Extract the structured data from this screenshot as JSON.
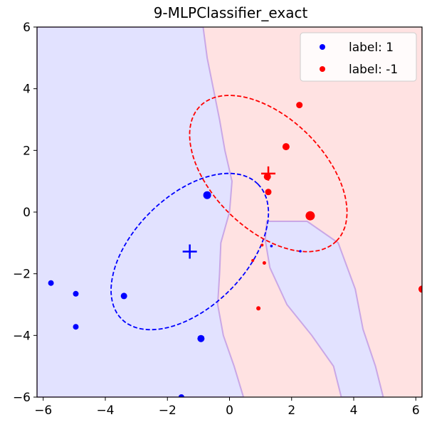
{
  "chart_data": {
    "type": "scatter",
    "title": "9-MLPClassifier_exact",
    "xlabel": "",
    "ylabel": "",
    "xlim": [
      -6.2,
      6.2
    ],
    "ylim": [
      -6,
      6
    ],
    "xticks": [
      -6,
      -4,
      -2,
      0,
      2,
      4,
      6
    ],
    "yticks": [
      -6,
      -4,
      -2,
      0,
      2,
      4,
      6
    ],
    "xtick_labels": [
      "−6",
      "−4",
      "−2",
      "0",
      "2",
      "4",
      "6"
    ],
    "ytick_labels": [
      "−6",
      "−4",
      "−2",
      "0",
      "2",
      "4",
      "6"
    ],
    "grid": false,
    "legend_position": "top-right",
    "colors": {
      "class_pos": "#0000ff",
      "class_neg": "#ff0000",
      "region_pos": "#e2e2ff",
      "region_neg": "#ffe2e2",
      "boundary": "#c9a7e6"
    },
    "series": [
      {
        "name": "label: 1",
        "color": "#0000ff",
        "points": [
          {
            "x": -5.75,
            "y": -2.3,
            "size": 4
          },
          {
            "x": -4.95,
            "y": -2.65,
            "size": 4
          },
          {
            "x": -4.95,
            "y": -3.72,
            "size": 4
          },
          {
            "x": -3.4,
            "y": -2.72,
            "size": 4.5
          },
          {
            "x": -0.72,
            "y": 0.55,
            "size": 5.5
          },
          {
            "x": -0.92,
            "y": -4.1,
            "size": 5
          },
          {
            "x": -1.55,
            "y": -6.0,
            "size": 4
          },
          {
            "x": 1.35,
            "y": -1.1,
            "size": 1.8
          },
          {
            "x": 2.28,
            "y": -1.27,
            "size": 1.8
          }
        ]
      },
      {
        "name": "label: -1",
        "color": "#ff0000",
        "points": [
          {
            "x": 2.25,
            "y": 3.47,
            "size": 4.5
          },
          {
            "x": 1.82,
            "y": 2.12,
            "size": 5
          },
          {
            "x": 1.22,
            "y": 1.15,
            "size": 5
          },
          {
            "x": 1.25,
            "y": 0.65,
            "size": 4.5
          },
          {
            "x": 2.6,
            "y": -0.12,
            "size": 6.5
          },
          {
            "x": 1.05,
            "y": -1.07,
            "size": 2
          },
          {
            "x": 0.75,
            "y": -1.57,
            "size": 2
          },
          {
            "x": 1.12,
            "y": -1.65,
            "size": 2.5
          },
          {
            "x": 0.93,
            "y": -3.12,
            "size": 3
          },
          {
            "x": 6.2,
            "y": -2.5,
            "size": 5
          }
        ]
      }
    ],
    "means": [
      {
        "class": "label: 1",
        "x": -1.28,
        "y": -1.28,
        "color": "#0000ff"
      },
      {
        "class": "label: -1",
        "x": 1.25,
        "y": 1.25,
        "color": "#ff0000"
      }
    ],
    "covariance_ellipses": [
      {
        "class": "label: 1",
        "cx": -1.28,
        "cy": -1.28,
        "rx_major": 3.1,
        "rx_minor": 1.8,
        "angle_deg": 45,
        "color": "#0000ff",
        "style": "dashed"
      },
      {
        "class": "label: -1",
        "cx": 1.25,
        "cy": 1.25,
        "rx_major": 3.1,
        "rx_minor": 1.8,
        "angle_deg": -45,
        "color": "#ff0000",
        "style": "dashed"
      }
    ],
    "decision_boundary_blue_region": [
      [
        -6.2,
        6.0
      ],
      [
        -0.85,
        6.0
      ],
      [
        -0.72,
        5.0
      ],
      [
        -0.52,
        4.0
      ],
      [
        -0.32,
        3.0
      ],
      [
        -0.15,
        2.0
      ],
      [
        0.08,
        1.0
      ],
      [
        0.0,
        0.0
      ],
      [
        -0.28,
        -1.0
      ],
      [
        -0.32,
        -2.0
      ],
      [
        -0.38,
        -3.0
      ],
      [
        -0.2,
        -4.0
      ],
      [
        0.15,
        -5.0
      ],
      [
        0.45,
        -6.0
      ],
      [
        -6.2,
        -6.0
      ]
    ],
    "decision_boundary_blue_island": [
      [
        1.2,
        -0.3
      ],
      [
        2.5,
        -0.3
      ],
      [
        3.5,
        -1.0
      ],
      [
        4.05,
        -2.5
      ],
      [
        4.3,
        -3.8
      ],
      [
        4.7,
        -5.0
      ],
      [
        4.95,
        -6.0
      ],
      [
        3.6,
        -6.0
      ],
      [
        3.35,
        -5.0
      ],
      [
        2.65,
        -4.0
      ],
      [
        1.85,
        -3.0
      ],
      [
        1.3,
        -1.8
      ],
      [
        1.15,
        -0.9
      ]
    ]
  }
}
